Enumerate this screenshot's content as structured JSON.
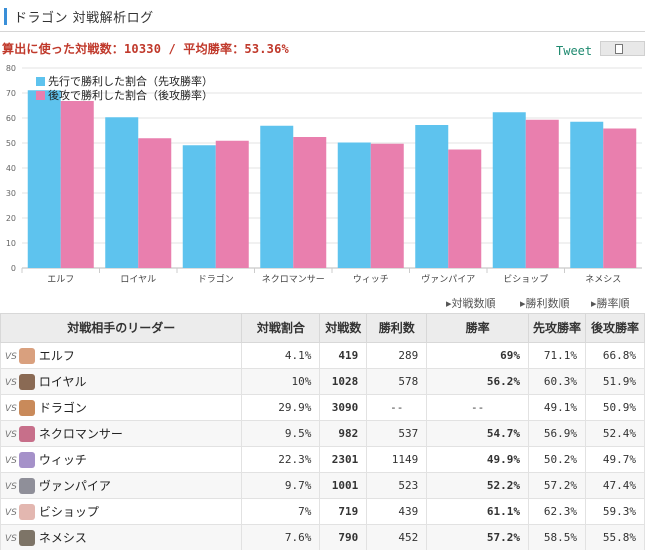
{
  "header": {
    "title": "ドラゴン 対戦解析ログ"
  },
  "summary": {
    "text": "算出に使った対戦数：10330 / 平均勝率：53.36%"
  },
  "share": {
    "tweet_label": "Tweet",
    "share_icon": "document-icon"
  },
  "colors": {
    "series_first": "#5ec3ee",
    "series_second": "#e97fae",
    "accent": "#3a8fd8",
    "rate_text": "#e2691f"
  },
  "chart_data": {
    "type": "bar",
    "categories": [
      "エルフ",
      "ロイヤル",
      "ドラゴン",
      "ネクロマンサー",
      "ウィッチ",
      "ヴァンパイア",
      "ビショップ",
      "ネメシス"
    ],
    "series": [
      {
        "name": "先行で勝利した割合（先攻勝率）",
        "values": [
          71.1,
          60.3,
          49.1,
          56.9,
          50.2,
          57.2,
          62.3,
          58.5
        ]
      },
      {
        "name": "後攻で勝利した割合（後攻勝率）",
        "values": [
          66.8,
          51.9,
          50.9,
          52.4,
          49.7,
          47.4,
          59.3,
          55.8
        ]
      }
    ],
    "yticks": [
      0,
      10,
      20,
      30,
      40,
      50,
      60,
      70,
      80
    ],
    "ylim": [
      0,
      80
    ],
    "grid": true,
    "legend": "top-left"
  },
  "sort": {
    "items": [
      "▸対戦数順",
      "▸勝利数順",
      "▸勝率順"
    ]
  },
  "table": {
    "headers": [
      "対戦相手のリーダー",
      "対戦割合",
      "対戦数",
      "勝利数",
      "勝率",
      "先攻勝率",
      "後攻勝率"
    ],
    "vs_label": "VS",
    "rows": [
      {
        "leader": "エルフ",
        "share": "4.1%",
        "games": "419",
        "wins": "289",
        "rate": "69%",
        "first": "71.1%",
        "second": "66.8%",
        "avatar_color": "#d9a07e"
      },
      {
        "leader": "ロイヤル",
        "share": "10%",
        "games": "1028",
        "wins": "578",
        "rate": "56.2%",
        "first": "60.3%",
        "second": "51.9%",
        "avatar_color": "#8a6a54"
      },
      {
        "leader": "ドラゴン",
        "share": "29.9%",
        "games": "3090",
        "wins": "--",
        "rate": "--",
        "first": "49.1%",
        "second": "50.9%",
        "avatar_color": "#c98a5a"
      },
      {
        "leader": "ネクロマンサー",
        "share": "9.5%",
        "games": "982",
        "wins": "537",
        "rate": "54.7%",
        "first": "56.9%",
        "second": "52.4%",
        "avatar_color": "#c76f8a"
      },
      {
        "leader": "ウィッチ",
        "share": "22.3%",
        "games": "2301",
        "wins": "1149",
        "rate": "49.9%",
        "first": "50.2%",
        "second": "49.7%",
        "avatar_color": "#a591c9"
      },
      {
        "leader": "ヴァンパイア",
        "share": "9.7%",
        "games": "1001",
        "wins": "523",
        "rate": "52.2%",
        "first": "57.2%",
        "second": "47.4%",
        "avatar_color": "#8f8f99"
      },
      {
        "leader": "ビショップ",
        "share": "7%",
        "games": "719",
        "wins": "439",
        "rate": "61.1%",
        "first": "62.3%",
        "second": "59.3%",
        "avatar_color": "#e3b7b0"
      },
      {
        "leader": "ネメシス",
        "share": "7.6%",
        "games": "790",
        "wins": "452",
        "rate": "57.2%",
        "first": "58.5%",
        "second": "55.8%",
        "avatar_color": "#7d7467"
      }
    ]
  }
}
